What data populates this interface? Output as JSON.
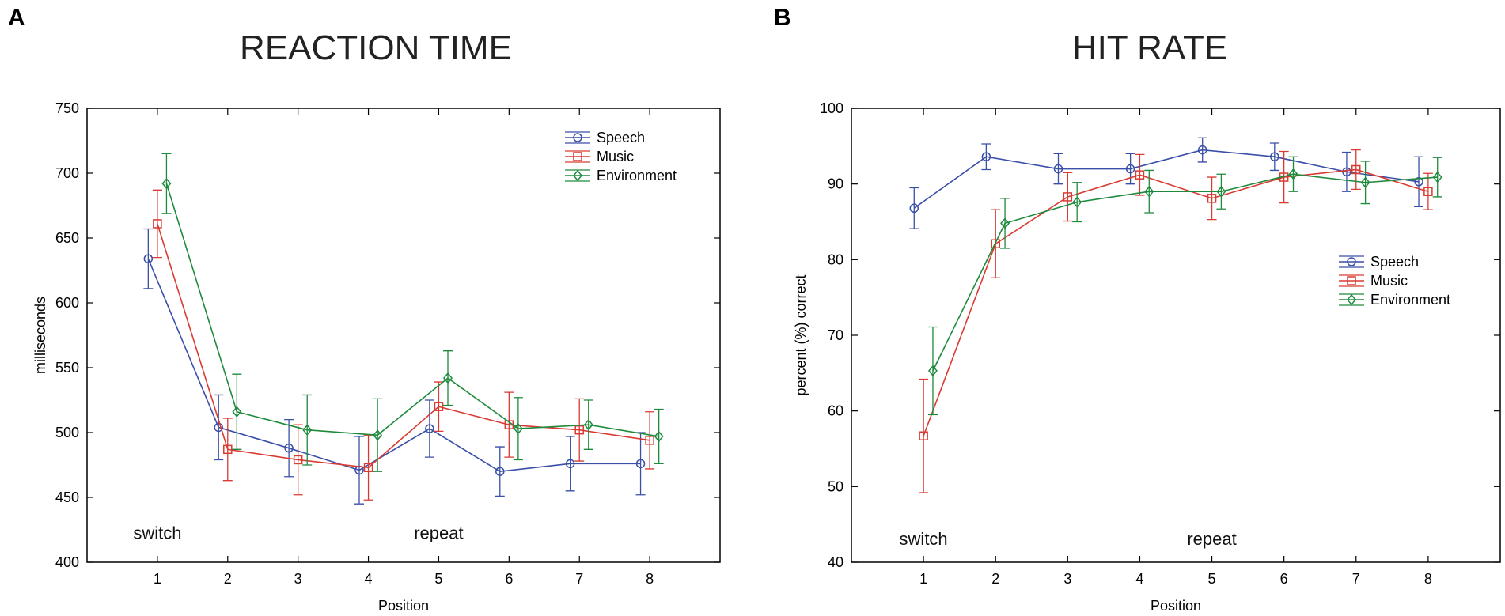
{
  "chart_data": [
    {
      "type": "line",
      "panel_label": "A",
      "title": "REACTION TIME",
      "xlabel": "Position",
      "ylabel": "milliseconds",
      "x": [
        1,
        2,
        3,
        4,
        5,
        6,
        7,
        8
      ],
      "xticks": [
        "1",
        "2",
        "3",
        "4",
        "5",
        "6",
        "7",
        "8"
      ],
      "xlim": [
        0,
        9
      ],
      "ylim": [
        400,
        750
      ],
      "yticks": [
        400,
        450,
        500,
        550,
        600,
        650,
        700,
        750
      ],
      "annotations": [
        {
          "text": "switch",
          "x": 1,
          "y": 418
        },
        {
          "text": "repeat",
          "x": 5,
          "y": 418
        }
      ],
      "legend_position": "top-right",
      "series": [
        {
          "name": "Speech",
          "color": "#3a4fa8",
          "marker": "circle",
          "offset": -0.13,
          "values": [
            634,
            504,
            488,
            471,
            503,
            470,
            476,
            476
          ],
          "errors": [
            23,
            25,
            22,
            26,
            22,
            19,
            21,
            24
          ]
        },
        {
          "name": "Music",
          "color": "#d93a32",
          "marker": "square",
          "offset": 0,
          "values": [
            661,
            487,
            479,
            473,
            520,
            506,
            502,
            494
          ],
          "errors": [
            26,
            24,
            27,
            25,
            19,
            25,
            24,
            22
          ]
        },
        {
          "name": "Environment",
          "color": "#1e8a3c",
          "marker": "diamond",
          "offset": 0.13,
          "values": [
            692,
            516,
            502,
            498,
            542,
            503,
            506,
            497
          ],
          "errors": [
            23,
            29,
            27,
            28,
            21,
            24,
            19,
            21
          ]
        }
      ]
    },
    {
      "type": "line",
      "panel_label": "B",
      "title": "HIT RATE",
      "xlabel": "Position",
      "ylabel": "percent (%) correct",
      "x": [
        1,
        2,
        3,
        4,
        5,
        6,
        7,
        8
      ],
      "xticks": [
        "1",
        "2",
        "3",
        "4",
        "5",
        "6",
        "7",
        "8"
      ],
      "xlim": [
        0,
        9
      ],
      "ylim": [
        40,
        100
      ],
      "yticks": [
        40,
        50,
        60,
        70,
        80,
        90,
        100
      ],
      "annotations": [
        {
          "text": "switch",
          "x": 1,
          "y": 42.3
        },
        {
          "text": "repeat",
          "x": 5,
          "y": 42.3
        }
      ],
      "legend_position": "center-right",
      "series": [
        {
          "name": "Speech",
          "color": "#3a4fa8",
          "marker": "circle",
          "offset": -0.13,
          "values": [
            86.8,
            93.6,
            92.0,
            92.0,
            94.5,
            93.6,
            91.6,
            90.3
          ],
          "errors": [
            2.7,
            1.7,
            2.0,
            2.0,
            1.6,
            1.8,
            2.6,
            3.3
          ]
        },
        {
          "name": "Music",
          "color": "#d93a32",
          "marker": "square",
          "offset": 0,
          "values": [
            56.7,
            82.1,
            88.3,
            91.2,
            88.1,
            90.9,
            91.9,
            89.0
          ],
          "errors": [
            7.5,
            4.5,
            3.2,
            2.7,
            2.8,
            3.4,
            2.6,
            2.4
          ]
        },
        {
          "name": "Environment",
          "color": "#1e8a3c",
          "marker": "diamond",
          "offset": 0.13,
          "values": [
            65.3,
            84.8,
            87.6,
            89.0,
            89.0,
            91.3,
            90.2,
            90.9
          ],
          "errors": [
            5.8,
            3.3,
            2.6,
            2.8,
            2.3,
            2.3,
            2.8,
            2.6
          ]
        }
      ]
    }
  ]
}
